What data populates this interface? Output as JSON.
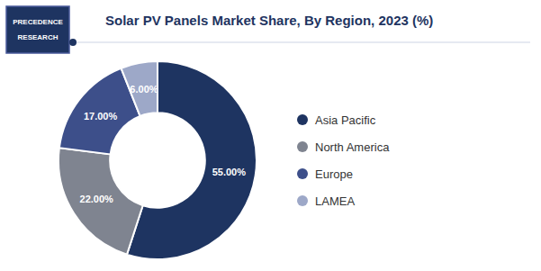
{
  "chart_data": {
    "type": "pie",
    "title": "Solar PV Panels Market Share, By Region, 2023 (%)",
    "categories": [
      "Asia Pacific",
      "North America",
      "Europe",
      "LAMEA"
    ],
    "values": [
      55.0,
      22.0,
      17.0,
      6.0
    ],
    "value_labels": [
      "55.00%",
      "22.00%",
      "17.00%",
      "6.00%"
    ],
    "colors": [
      "#1e3461",
      "#7f8490",
      "#3d4f8a",
      "#9da8c8"
    ],
    "data_labels": true,
    "legend": "right",
    "annotations": [
      "PRECEDENCE",
      "RESEARCH"
    ]
  }
}
